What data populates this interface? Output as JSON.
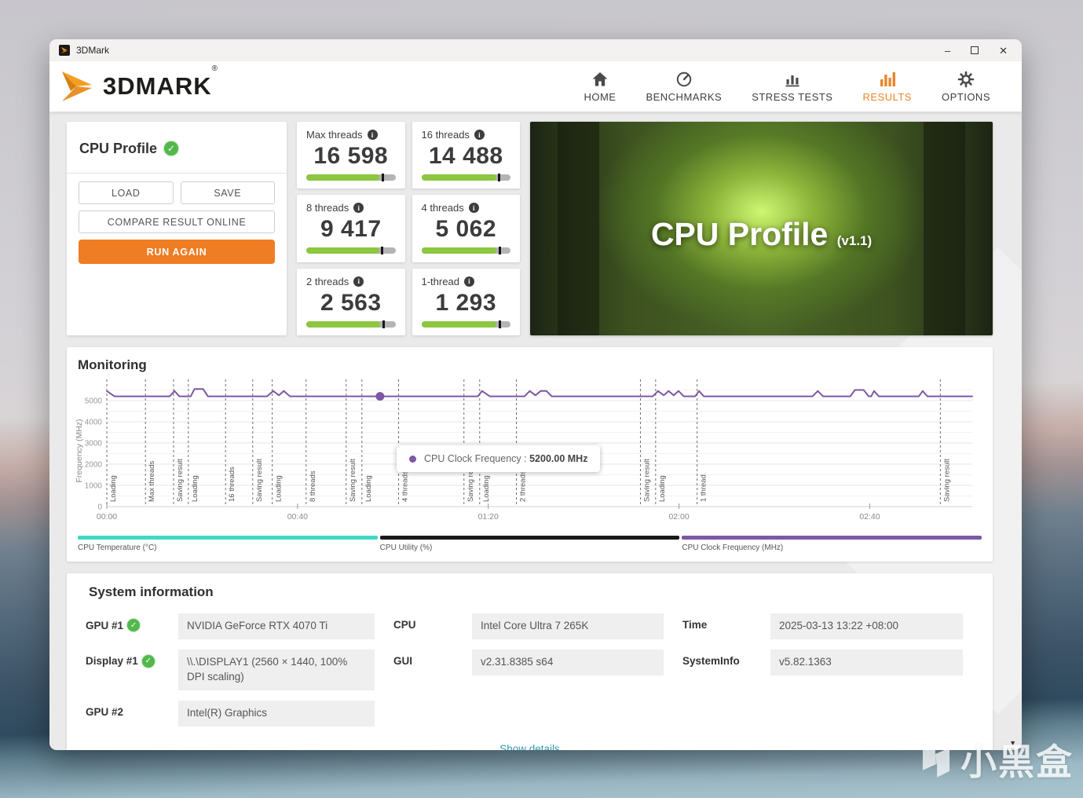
{
  "colors": {
    "accent_orange": "#ef7d23",
    "score_green": "#8dc63f",
    "line_purple": "#7e57a5",
    "temp_teal": "#3fd9c4",
    "utility_black": "#1a1a1a",
    "link_teal": "#2e9bb0",
    "check_green": "#52b84c"
  },
  "window": {
    "title": "3DMark",
    "controls": {
      "minimize_glyph": "–",
      "close_glyph": "✕"
    }
  },
  "header": {
    "logo_text": "3DMARK",
    "registered": "®",
    "nav": [
      {
        "label": "HOME",
        "icon": "home-icon",
        "active": false
      },
      {
        "label": "BENCHMARKS",
        "icon": "benchmarks-gauge-icon",
        "active": false
      },
      {
        "label": "STRESS TESTS",
        "icon": "stress-tests-chart-icon",
        "active": false
      },
      {
        "label": "RESULTS",
        "icon": "results-chart-icon",
        "active": true
      },
      {
        "label": "OPTIONS",
        "icon": "options-gear-icon",
        "active": false
      }
    ]
  },
  "result_panel": {
    "title": "CPU Profile",
    "load_label": "LOAD",
    "save_label": "SAVE",
    "compare_label": "COMPARE RESULT ONLINE",
    "run_again_label": "RUN AGAIN"
  },
  "scores": [
    {
      "label": "Max threads",
      "value": "16 598",
      "fill": 82,
      "marker": 84.5
    },
    {
      "label": "16 threads",
      "value": "14 488",
      "fill": 84,
      "marker": 86
    },
    {
      "label": "8 threads",
      "value": "9 417",
      "fill": 82,
      "marker": 84
    },
    {
      "label": "4 threads",
      "value": "5 062",
      "fill": 84.5,
      "marker": 86.5
    },
    {
      "label": "2 threads",
      "value": "2 563",
      "fill": 83,
      "marker": 85.5
    },
    {
      "label": "1-thread",
      "value": "1 293",
      "fill": 84,
      "marker": 86.5
    }
  ],
  "hero": {
    "title": "CPU Profile",
    "version": "(v1.1)"
  },
  "monitoring": {
    "title": "Monitoring"
  },
  "chart_data": {
    "type": "line",
    "title": "Monitoring",
    "ylabel": "Frequency (MHz)",
    "ylim": [
      0,
      6000
    ],
    "yticks": [
      0,
      1000,
      2000,
      3000,
      4000,
      5000
    ],
    "x_range_seconds": [
      0,
      181.5
    ],
    "xticks": [
      {
        "t": 0,
        "label": "00:00"
      },
      {
        "t": 40,
        "label": "00:40"
      },
      {
        "t": 80,
        "label": "01:20"
      },
      {
        "t": 120,
        "label": "02:00"
      },
      {
        "t": 160,
        "label": "02:40"
      }
    ],
    "events": [
      {
        "t": 0,
        "label": "Loading"
      },
      {
        "t": 8.1,
        "label": "Max threads"
      },
      {
        "t": 14.0,
        "label": "Saving result"
      },
      {
        "t": 17.1,
        "label": "Loading"
      },
      {
        "t": 24.9,
        "label": "16 threads"
      },
      {
        "t": 30.6,
        "label": "Saving result"
      },
      {
        "t": 34.7,
        "label": "Loading"
      },
      {
        "t": 41.8,
        "label": "8 threads"
      },
      {
        "t": 50.2,
        "label": "Saving result"
      },
      {
        "t": 53.5,
        "label": "Loading"
      },
      {
        "t": 61.2,
        "label": "4 threads"
      },
      {
        "t": 74.9,
        "label": "Saving result"
      },
      {
        "t": 78.2,
        "label": "Loading"
      },
      {
        "t": 85.9,
        "label": "2 threads"
      },
      {
        "t": 111.9,
        "label": "Saving result"
      },
      {
        "t": 115.1,
        "label": "Loading"
      },
      {
        "t": 123.8,
        "label": "1 thread"
      },
      {
        "t": 174.8,
        "label": "Saving result"
      }
    ],
    "series": [
      {
        "name": "CPU Temperature (°C)",
        "color": "#3fd9c4"
      },
      {
        "name": "CPU Utility (%)",
        "color": "#1a1a1a"
      },
      {
        "name": "CPU Clock Frequency (MHz)",
        "color": "#7e57a5",
        "points": [
          [
            0,
            5450
          ],
          [
            1.6,
            5200
          ],
          [
            13.2,
            5200
          ],
          [
            14.2,
            5450
          ],
          [
            15.2,
            5200
          ],
          [
            17.6,
            5200
          ],
          [
            18.4,
            5550
          ],
          [
            20.2,
            5550
          ],
          [
            21.2,
            5200
          ],
          [
            33.6,
            5200
          ],
          [
            34.9,
            5450
          ],
          [
            36.1,
            5250
          ],
          [
            37.1,
            5450
          ],
          [
            38.4,
            5200
          ],
          [
            77.8,
            5200
          ],
          [
            78.7,
            5450
          ],
          [
            80.3,
            5200
          ],
          [
            87.6,
            5200
          ],
          [
            88.7,
            5450
          ],
          [
            89.9,
            5250
          ],
          [
            91.0,
            5450
          ],
          [
            92.2,
            5450
          ],
          [
            93.3,
            5200
          ],
          [
            114.5,
            5200
          ],
          [
            115.6,
            5450
          ],
          [
            116.8,
            5250
          ],
          [
            117.8,
            5450
          ],
          [
            118.9,
            5250
          ],
          [
            119.9,
            5450
          ],
          [
            121.0,
            5200
          ],
          [
            123.4,
            5200
          ],
          [
            124.2,
            5450
          ],
          [
            125.2,
            5200
          ],
          [
            148.0,
            5200
          ],
          [
            149.1,
            5450
          ],
          [
            150.2,
            5200
          ],
          [
            155.9,
            5200
          ],
          [
            156.9,
            5500
          ],
          [
            158.7,
            5500
          ],
          [
            159.8,
            5200
          ],
          [
            160.3,
            5200
          ],
          [
            160.9,
            5450
          ],
          [
            161.9,
            5200
          ],
          [
            170.3,
            5200
          ],
          [
            171.1,
            5450
          ],
          [
            172.1,
            5200
          ],
          [
            181.5,
            5200
          ]
        ]
      }
    ],
    "hover": {
      "t": 57.3,
      "value_mhz": 5200,
      "tooltip_label": "CPU Clock Frequency :",
      "tooltip_value": "5200.00 MHz"
    },
    "legend_position": "bottom",
    "grid": true
  },
  "system_info": {
    "title": "System information",
    "show_details": "Show details",
    "columns": [
      [
        {
          "label": "GPU #1",
          "check": true,
          "value": "NVIDIA GeForce RTX 4070 Ti"
        },
        {
          "label": "Display #1",
          "check": true,
          "value": "\\\\.\\DISPLAY1 (2560 × 1440, 100% DPI scaling)"
        },
        {
          "label": "GPU #2",
          "check": false,
          "value": "Intel(R) Graphics"
        }
      ],
      [
        {
          "label": "CPU",
          "check": false,
          "value": "Intel Core Ultra 7 265K"
        },
        {
          "label": "GUI",
          "check": false,
          "value": "v2.31.8385 s64"
        }
      ],
      [
        {
          "label": "Time",
          "check": false,
          "value": "2025-03-13 13:22 +08:00"
        },
        {
          "label": "SystemInfo",
          "check": false,
          "value": "v5.82.1363"
        }
      ]
    ]
  },
  "watermark": {
    "text": "小黑盒"
  }
}
